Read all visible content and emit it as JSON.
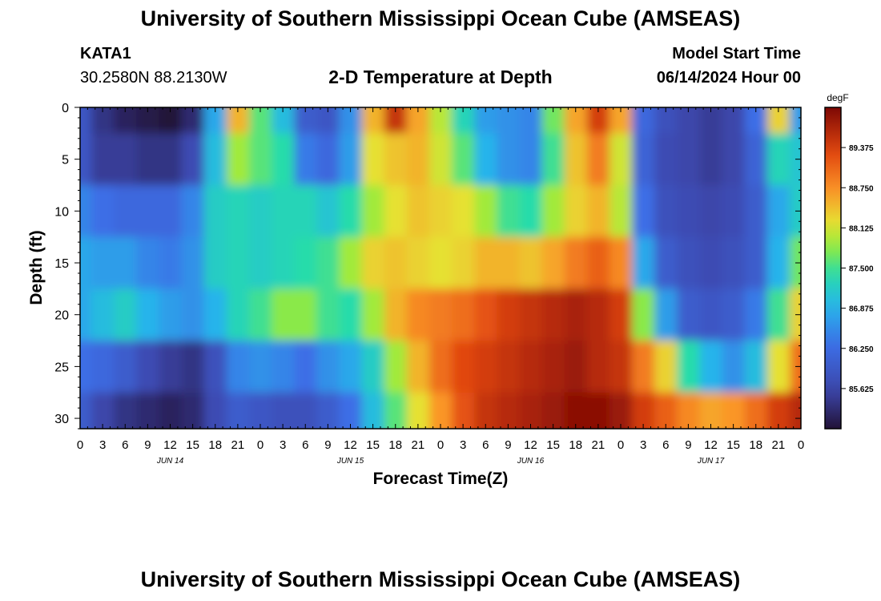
{
  "header": {
    "title": "University of Southern Mississippi Ocean Cube (AMSEAS)",
    "station_id": "KATA1",
    "station_coords": "30.2580N  88.2130W",
    "plot_title": "2-D Temperature at Depth",
    "model_start_label": "Model Start Time",
    "model_start_value": "06/14/2024 Hour 00"
  },
  "footer": {
    "title": "University of Southern Mississippi Ocean Cube (AMSEAS)"
  },
  "chart_data": {
    "type": "heatmap",
    "title": "2-D Temperature at Depth",
    "xlabel": "Forecast Time(Z)",
    "ylabel": "Depth (ft)",
    "colorbar_unit": "degF",
    "x_hours": [
      0,
      3,
      6,
      9,
      12,
      15,
      18,
      21,
      24,
      27,
      30,
      33,
      36,
      39,
      42,
      45,
      48,
      51,
      54,
      57,
      60,
      63,
      66,
      69,
      72,
      75,
      78,
      81,
      84,
      87,
      90,
      93,
      96
    ],
    "x_tick_labels": [
      "0",
      "3",
      "6",
      "9",
      "12",
      "15",
      "18",
      "21",
      "0",
      "3",
      "6",
      "9",
      "12",
      "15",
      "18",
      "21",
      "0",
      "3",
      "6",
      "9",
      "12",
      "15",
      "18",
      "21",
      "0",
      "3",
      "6",
      "9",
      "12",
      "15",
      "18",
      "21",
      "0"
    ],
    "date_labels": [
      {
        "label": "JUN 14",
        "hour": 12
      },
      {
        "label": "JUN 15",
        "hour": 36
      },
      {
        "label": "JUN 16",
        "hour": 60
      },
      {
        "label": "JUN 17",
        "hour": 84
      }
    ],
    "depth_ft": [
      0,
      5,
      10,
      15,
      20,
      25,
      30
    ],
    "y_ticks": [
      0,
      5,
      10,
      15,
      20,
      25,
      30
    ],
    "ylim": [
      0,
      31
    ],
    "xlim": [
      0,
      96
    ],
    "colorbar_ticks": [
      85.625,
      86.25,
      86.875,
      87.5,
      88.125,
      88.75,
      89.375
    ],
    "colorbar_tick_labels": [
      "85.625",
      "86.250",
      "86.875",
      "87.500",
      "88.125",
      "88.750",
      "89.375"
    ],
    "vmin": 85.0,
    "vmax": 90.0,
    "values": [
      [
        85.9,
        85.4,
        85.2,
        85.1,
        85.0,
        85.3,
        86.8,
        88.5,
        87.6,
        87.0,
        86.0,
        85.9,
        86.6,
        88.5,
        89.5,
        88.6,
        88.0,
        87.3,
        86.7,
        86.6,
        86.5,
        87.7,
        88.6,
        89.4,
        88.6,
        86.2,
        85.8,
        85.6,
        85.5,
        85.6,
        86.3,
        88.3,
        86.7
      ],
      [
        85.9,
        85.5,
        85.5,
        85.4,
        85.4,
        85.7,
        87.0,
        87.9,
        87.6,
        87.4,
        86.4,
        86.2,
        86.7,
        88.2,
        88.4,
        88.5,
        88.1,
        87.6,
        86.9,
        86.6,
        86.5,
        87.5,
        88.4,
        88.9,
        88.1,
        86.1,
        85.7,
        85.6,
        85.5,
        85.6,
        86.1,
        87.3,
        87.1
      ],
      [
        86.5,
        86.3,
        86.2,
        86.2,
        86.2,
        86.5,
        87.2,
        87.3,
        87.2,
        87.3,
        87.3,
        87.1,
        87.4,
        87.9,
        88.2,
        88.4,
        88.3,
        88.2,
        87.9,
        87.5,
        87.4,
        87.9,
        88.3,
        88.5,
        88.0,
        86.3,
        85.8,
        85.7,
        85.6,
        85.7,
        86.0,
        86.8,
        87.2
      ],
      [
        86.8,
        86.7,
        86.7,
        86.5,
        86.4,
        86.6,
        87.2,
        87.3,
        87.2,
        87.3,
        87.4,
        87.5,
        87.9,
        88.3,
        88.4,
        88.3,
        88.2,
        88.3,
        88.5,
        88.5,
        88.4,
        88.6,
        88.9,
        89.1,
        88.8,
        86.8,
        86.0,
        85.8,
        85.7,
        85.8,
        86.0,
        86.9,
        87.7
      ],
      [
        86.8,
        87.0,
        87.2,
        86.9,
        86.7,
        86.6,
        86.9,
        87.3,
        87.5,
        87.8,
        87.8,
        87.5,
        87.4,
        87.9,
        88.5,
        88.8,
        88.9,
        89.0,
        89.2,
        89.4,
        89.5,
        89.6,
        89.7,
        89.6,
        89.4,
        87.8,
        86.7,
        86.0,
        85.9,
        86.0,
        86.4,
        87.5,
        88.3
      ],
      [
        86.3,
        86.2,
        86.0,
        85.7,
        85.5,
        85.4,
        85.8,
        86.5,
        86.6,
        86.5,
        86.3,
        86.6,
        86.8,
        87.2,
        87.9,
        88.5,
        89.0,
        89.3,
        89.4,
        89.5,
        89.6,
        89.7,
        89.8,
        89.6,
        89.5,
        88.9,
        88.3,
        87.4,
        86.9,
        86.6,
        87.0,
        88.2,
        89.0
      ],
      [
        86.0,
        85.6,
        85.4,
        85.3,
        85.2,
        85.3,
        85.7,
        86.0,
        85.9,
        85.8,
        85.8,
        86.0,
        86.3,
        87.0,
        87.6,
        88.2,
        88.7,
        89.2,
        89.5,
        89.6,
        89.7,
        89.8,
        89.9,
        89.9,
        89.8,
        89.4,
        89.1,
        88.8,
        88.6,
        88.7,
        89.0,
        89.4,
        89.6
      ]
    ]
  }
}
